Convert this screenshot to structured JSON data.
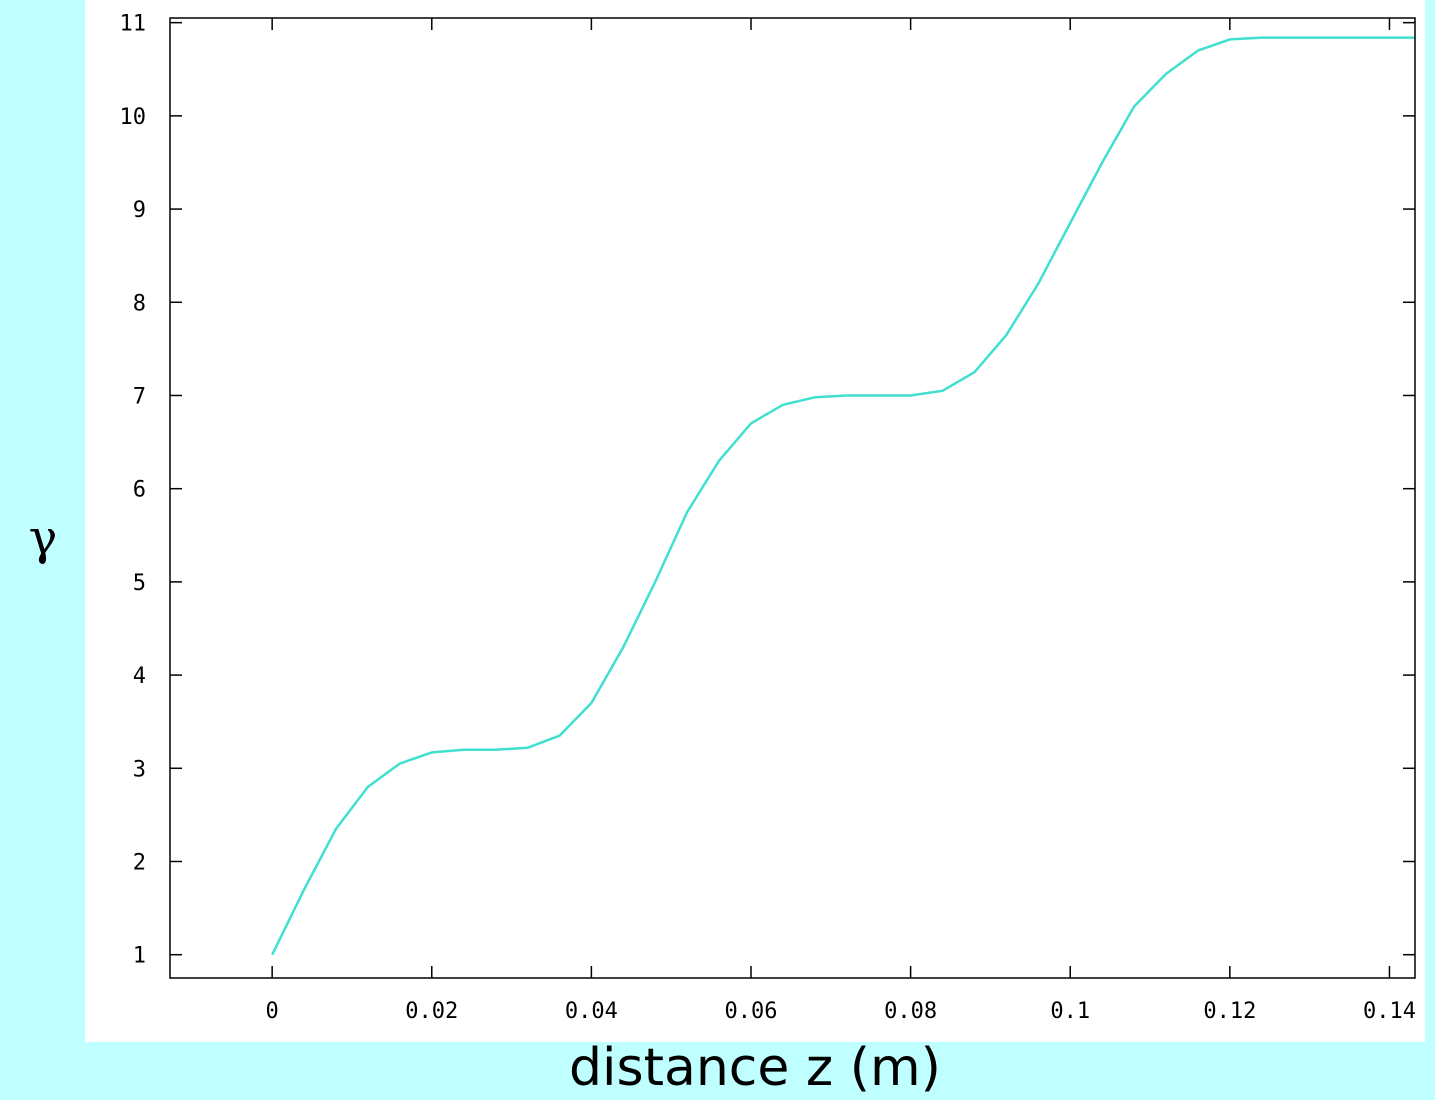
{
  "chart_data": {
    "type": "line",
    "title": "",
    "xlabel": "distance z (m)",
    "ylabel": "γ",
    "xlim": [
      -0.0128,
      0.1432
    ],
    "ylim": [
      0.75,
      11.05
    ],
    "xticks": [
      0,
      0.02,
      0.04,
      0.06,
      0.08,
      0.1,
      0.12,
      0.14
    ],
    "xtick_labels": [
      "0",
      "0.02",
      "0.04",
      "0.06",
      "0.08",
      "0.1",
      "0.12",
      "0.14"
    ],
    "yticks": [
      1,
      2,
      3,
      4,
      5,
      6,
      7,
      8,
      9,
      10,
      11
    ],
    "ytick_labels": [
      "1",
      "2",
      "3",
      "4",
      "5",
      "6",
      "7",
      "8",
      "9",
      "10",
      "11"
    ],
    "grid": false,
    "legend": "none",
    "line_color": "#40e0d0",
    "series": [
      {
        "x": [
          0,
          0.004,
          0.008,
          0.012,
          0.016,
          0.02,
          0.024,
          0.028,
          0.032,
          0.036,
          0.04,
          0.044,
          0.048,
          0.052,
          0.056,
          0.06,
          0.064,
          0.068,
          0.072,
          0.076,
          0.08,
          0.084,
          0.088,
          0.092,
          0.096,
          0.1,
          0.104,
          0.108,
          0.112,
          0.116,
          0.12,
          0.124,
          0.128,
          0.132,
          0.136,
          0.14,
          0.1432
        ],
        "y": [
          1.0,
          1.7,
          2.35,
          2.8,
          3.05,
          3.17,
          3.2,
          3.2,
          3.22,
          3.35,
          3.7,
          4.3,
          5.0,
          5.75,
          6.3,
          6.7,
          6.9,
          6.98,
          7.0,
          7.0,
          7.0,
          7.05,
          7.25,
          7.65,
          8.2,
          8.85,
          9.5,
          10.1,
          10.45,
          10.7,
          10.82,
          10.84,
          10.84,
          10.84,
          10.84,
          10.84,
          10.84
        ]
      }
    ]
  }
}
